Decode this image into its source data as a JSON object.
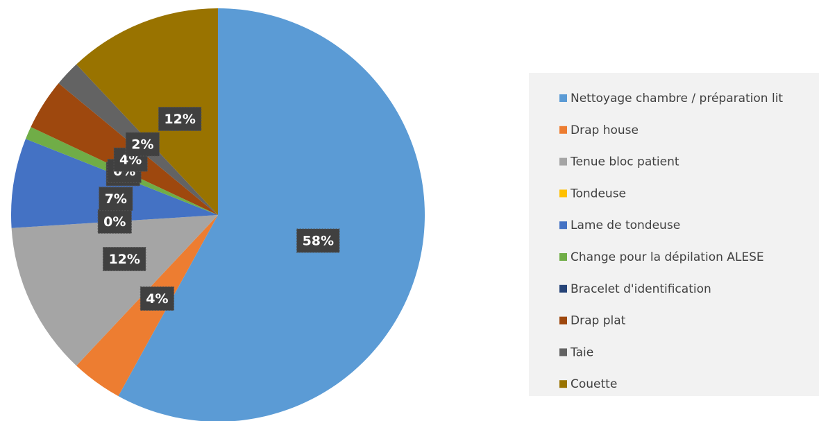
{
  "chart_data": {
    "type": "pie",
    "categories": [
      "Nettoyage chambre / préparation lit",
      "Drap house",
      "Tenue bloc patient",
      "Tondeuse",
      "Lame de tondeuse",
      "Change pour la dépilation ALESE",
      "Bracelet d'identification",
      "Drap plat",
      "Taie",
      "Couette"
    ],
    "values": [
      58,
      4,
      12,
      0,
      7,
      1,
      0,
      4,
      2,
      12
    ],
    "value_labels": [
      "58%",
      "4%",
      "12%",
      "0%",
      "7%",
      "1%",
      "0%",
      "4%",
      "2%",
      "12%"
    ],
    "colors": [
      "#5b9bd5",
      "#ed7d31",
      "#a5a5a5",
      "#ffc000",
      "#4472c4",
      "#70ad47",
      "#264478",
      "#9e480e",
      "#636363",
      "#997300"
    ],
    "legend": "right"
  }
}
